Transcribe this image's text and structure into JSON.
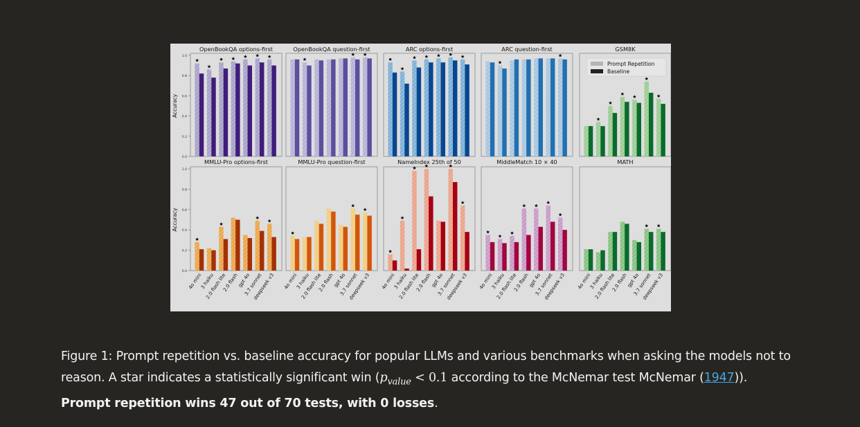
{
  "chart_data": [
    {
      "type": "bar",
      "title": "OpenBookQA options-first",
      "row": 0,
      "ylabel": "Accuracy",
      "ylim": [
        0,
        1
      ],
      "yticks": [
        "0.0",
        "0.2",
        "0.4",
        "0.6",
        "0.8",
        "1.0"
      ],
      "categories": [
        "4o mini",
        "3 haiku",
        "2.0 flash lite",
        "2.0 flash",
        "gpt 4o",
        "3.7 sonnet",
        "deepseek v3"
      ],
      "series": [
        {
          "name": "Prompt Repetition",
          "values": [
            0.92,
            0.86,
            0.93,
            0.94,
            0.96,
            0.97,
            0.96
          ]
        },
        {
          "name": "Baseline",
          "values": [
            0.82,
            0.78,
            0.87,
            0.92,
            0.9,
            0.93,
            0.9
          ]
        }
      ],
      "significant": [
        true,
        true,
        true,
        true,
        true,
        true,
        true
      ],
      "colors": {
        "rep": "#a9a3c8",
        "base": "#3f1d7a"
      }
    },
    {
      "type": "bar",
      "title": "OpenBookQA question-first",
      "row": 0,
      "ylim": [
        0,
        1
      ],
      "categories": [
        "4o mini",
        "3 haiku",
        "2.0 flash lite",
        "2.0 flash",
        "gpt 4o",
        "3.7 sonnet",
        "deepseek v3"
      ],
      "series": [
        {
          "name": "Prompt Repetition",
          "values": [
            0.96,
            0.93,
            0.96,
            0.96,
            0.97,
            0.98,
            0.98
          ]
        },
        {
          "name": "Baseline",
          "values": [
            0.96,
            0.9,
            0.95,
            0.96,
            0.97,
            0.96,
            0.97
          ]
        }
      ],
      "significant": [
        false,
        true,
        false,
        false,
        false,
        true,
        true
      ],
      "colors": {
        "rep": "#b6b3d6",
        "base": "#5b4f9e"
      }
    },
    {
      "type": "bar",
      "title": "ARC options-first",
      "row": 0,
      "ylim": [
        0,
        1
      ],
      "categories": [
        "4o mini",
        "3 haiku",
        "2.0 flash lite",
        "2.0 flash",
        "gpt 4o",
        "3.7 sonnet",
        "deepseek v3"
      ],
      "series": [
        {
          "name": "Prompt Repetition",
          "values": [
            0.93,
            0.84,
            0.95,
            0.96,
            0.97,
            0.98,
            0.96
          ]
        },
        {
          "name": "Baseline",
          "values": [
            0.83,
            0.72,
            0.88,
            0.93,
            0.93,
            0.95,
            0.91
          ]
        }
      ],
      "significant": [
        true,
        true,
        true,
        true,
        true,
        true,
        true
      ],
      "colors": {
        "rep": "#7fb0d8",
        "base": "#07478f"
      }
    },
    {
      "type": "bar",
      "title": "ARC question-first",
      "row": 0,
      "ylim": [
        0,
        1
      ],
      "categories": [
        "4o mini",
        "3 haiku",
        "2.0 flash lite",
        "2.0 flash",
        "gpt 4o",
        "3.7 sonnet",
        "deepseek v3"
      ],
      "series": [
        {
          "name": "Prompt Repetition",
          "values": [
            0.94,
            0.9,
            0.95,
            0.96,
            0.97,
            0.97,
            0.97
          ]
        },
        {
          "name": "Baseline",
          "values": [
            0.93,
            0.87,
            0.96,
            0.96,
            0.97,
            0.97,
            0.96
          ]
        }
      ],
      "significant": [
        false,
        true,
        false,
        false,
        false,
        false,
        true
      ],
      "colors": {
        "rep": "#a9c6df",
        "base": "#2270b0"
      }
    },
    {
      "type": "bar",
      "title": "GSM8K",
      "row": 0,
      "ylim": [
        0,
        1
      ],
      "legend": {
        "placement": "top-right",
        "entries": [
          "Prompt Repetition",
          "Baseline"
        ]
      },
      "categories": [
        "4o mini",
        "3 haiku",
        "2.0 flash lite",
        "2.0 flash",
        "gpt 4o",
        "3.7 sonnet",
        "deepseek v3"
      ],
      "series": [
        {
          "name": "Prompt Repetition",
          "values": [
            0.3,
            0.34,
            0.5,
            0.59,
            0.56,
            0.74,
            0.57
          ]
        },
        {
          "name": "Baseline",
          "values": [
            0.3,
            0.3,
            0.43,
            0.54,
            0.53,
            0.63,
            0.52
          ]
        }
      ],
      "significant": [
        false,
        true,
        true,
        true,
        true,
        true,
        true
      ],
      "colors": {
        "rep": "#9ccc93",
        "base": "#0a6b2c"
      }
    },
    {
      "type": "bar",
      "title": "MMLU-Pro options-first",
      "row": 1,
      "ylabel": "Accuracy",
      "ylim": [
        0,
        1
      ],
      "yticks": [
        "0.0",
        "0.2",
        "0.4",
        "0.6",
        "0.8",
        "1.0"
      ],
      "categories": [
        "4o mini",
        "3 haiku",
        "2.0 flash lite",
        "2.0 flash",
        "gpt 4o",
        "3.7 sonnet",
        "deepseek v3"
      ],
      "series": [
        {
          "name": "Prompt Repetition",
          "values": [
            0.28,
            0.22,
            0.43,
            0.52,
            0.35,
            0.49,
            0.46
          ]
        },
        {
          "name": "Baseline",
          "values": [
            0.21,
            0.2,
            0.31,
            0.5,
            0.32,
            0.39,
            0.33
          ]
        }
      ],
      "significant": [
        true,
        false,
        true,
        false,
        false,
        true,
        true
      ],
      "colors": {
        "rep": "#eca64a",
        "base": "#a33106"
      }
    },
    {
      "type": "bar",
      "title": "MMLU-Pro question-first",
      "row": 1,
      "ylim": [
        0,
        1
      ],
      "categories": [
        "4o mini",
        "3 haiku",
        "2.0 flash lite",
        "2.0 flash",
        "gpt 4o",
        "3.7 sonnet",
        "deepseek v3"
      ],
      "series": [
        {
          "name": "Prompt Repetition",
          "values": [
            0.34,
            0.33,
            0.49,
            0.61,
            0.45,
            0.61,
            0.57
          ]
        },
        {
          "name": "Baseline",
          "values": [
            0.31,
            0.33,
            0.46,
            0.58,
            0.43,
            0.55,
            0.54
          ]
        }
      ],
      "significant": [
        true,
        false,
        false,
        false,
        false,
        true,
        true
      ],
      "colors": {
        "rep": "#f1cc82",
        "base": "#d2560a"
      }
    },
    {
      "type": "bar",
      "title": "NameIndex 25th of 50",
      "row": 1,
      "ylim": [
        0,
        1
      ],
      "categories": [
        "4o mini",
        "3 haiku",
        "2.0 flash lite",
        "2.0 flash",
        "gpt 4o",
        "3.7 sonnet",
        "deepseek v3"
      ],
      "series": [
        {
          "name": "Prompt Repetition",
          "values": [
            0.16,
            0.49,
            0.98,
            1.0,
            0.49,
            1.0,
            0.64
          ]
        },
        {
          "name": "Baseline",
          "values": [
            0.1,
            0.02,
            0.21,
            0.73,
            0.48,
            0.87,
            0.38
          ]
        }
      ],
      "significant": [
        true,
        true,
        true,
        true,
        false,
        true,
        true
      ],
      "colors": {
        "rep": "#eba38a",
        "base": "#a60012"
      }
    },
    {
      "type": "bar",
      "title": "MiddleMatch 10 × 40",
      "row": 1,
      "ylim": [
        0,
        1
      ],
      "categories": [
        "4o mini",
        "3 haiku",
        "2.0 flash lite",
        "2.0 flash",
        "gpt 4o",
        "3.7 sonnet",
        "deepseek v3"
      ],
      "series": [
        {
          "name": "Prompt Repetition",
          "values": [
            0.35,
            0.31,
            0.34,
            0.61,
            0.61,
            0.64,
            0.52
          ]
        },
        {
          "name": "Baseline",
          "values": [
            0.28,
            0.27,
            0.28,
            0.35,
            0.43,
            0.48,
            0.4
          ]
        }
      ],
      "significant": [
        true,
        true,
        true,
        true,
        true,
        true,
        true
      ],
      "colors": {
        "rep": "#c99ac8",
        "base": "#a1063f"
      }
    },
    {
      "type": "bar",
      "title": "MATH",
      "row": 1,
      "ylim": [
        0,
        1
      ],
      "categories": [
        "4o mini",
        "3 haiku",
        "2.0 flash lite",
        "2.0 flash",
        "gpt 4o",
        "3.7 sonnet",
        "deepseek v3"
      ],
      "series": [
        {
          "name": "Prompt Repetition",
          "values": [
            0.21,
            0.18,
            0.38,
            0.48,
            0.3,
            0.41,
            0.41
          ]
        },
        {
          "name": "Baseline",
          "values": [
            0.21,
            0.2,
            0.38,
            0.46,
            0.28,
            0.38,
            0.38
          ]
        }
      ],
      "significant": [
        false,
        false,
        false,
        false,
        false,
        true,
        true
      ],
      "colors": {
        "rep": "#86c27f",
        "base": "#0a6b2c"
      }
    }
  ],
  "legend_colors": {
    "rep": "#b5b5b5",
    "base": "#222222"
  },
  "caption": {
    "label": "Figure 1:",
    "text1": " Prompt repetition vs. baseline accuracy for popular LLMs and various benchmarks when asking the models not to reason. A star indicates a statistically significant win (",
    "p": "p",
    "sub": "value",
    "math": " < 0.1",
    "text2": " according to the McNemar test McNemar (",
    "link": "1947",
    "text3": ")).",
    "bold": "Prompt repetition wins 47 out of 70 tests, with 0 losses",
    "end": "."
  }
}
